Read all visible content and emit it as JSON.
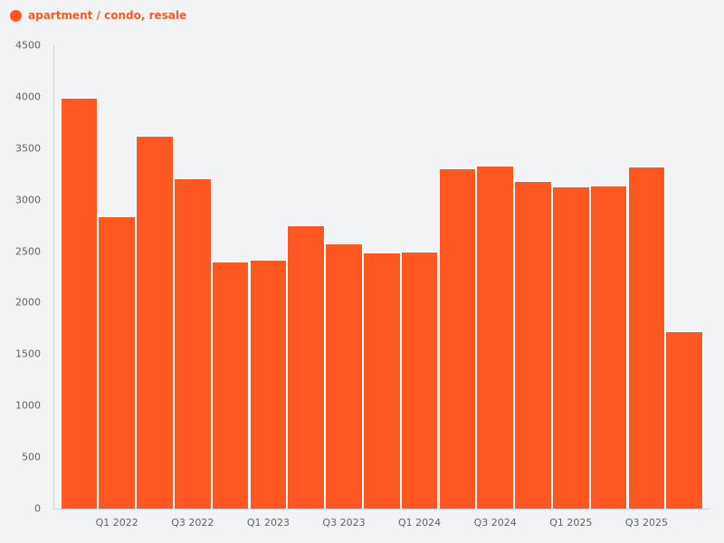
{
  "legend": {
    "label": "apartment / condo, resale",
    "color": "#ff5722"
  },
  "chart_data": {
    "type": "bar",
    "title": "",
    "xlabel": "",
    "ylabel": "",
    "ylim": [
      0,
      4500
    ],
    "yticks": [
      0,
      500,
      1000,
      1500,
      2000,
      2500,
      3000,
      3500,
      4000,
      4500
    ],
    "categories": [
      "Q4 2021",
      "Q1 2022",
      "Q2 2022",
      "Q3 2022",
      "Q4 2022",
      "Q1 2023",
      "Q2 2023",
      "Q3 2023",
      "Q4 2023",
      "Q1 2024",
      "Q2 2024",
      "Q3 2024",
      "Q4 2024",
      "Q1 2025",
      "Q2 2025",
      "Q3 2025",
      "Q4 2025"
    ],
    "xtick_labels": [
      "Q1 2022",
      "Q3 2022",
      "Q1 2023",
      "Q3 2023",
      "Q1 2024",
      "Q3 2024",
      "Q1 2025",
      "Q3 2025"
    ],
    "series": [
      {
        "name": "apartment / condo, resale",
        "color": "#ff5722",
        "values": [
          3990,
          2840,
          3620,
          3210,
          2400,
          2415,
          2750,
          2575,
          2485,
          2495,
          3305,
          3330,
          3180,
          3130,
          3140,
          3320,
          1725
        ]
      }
    ],
    "grid": false,
    "legend_position": "top-left"
  }
}
